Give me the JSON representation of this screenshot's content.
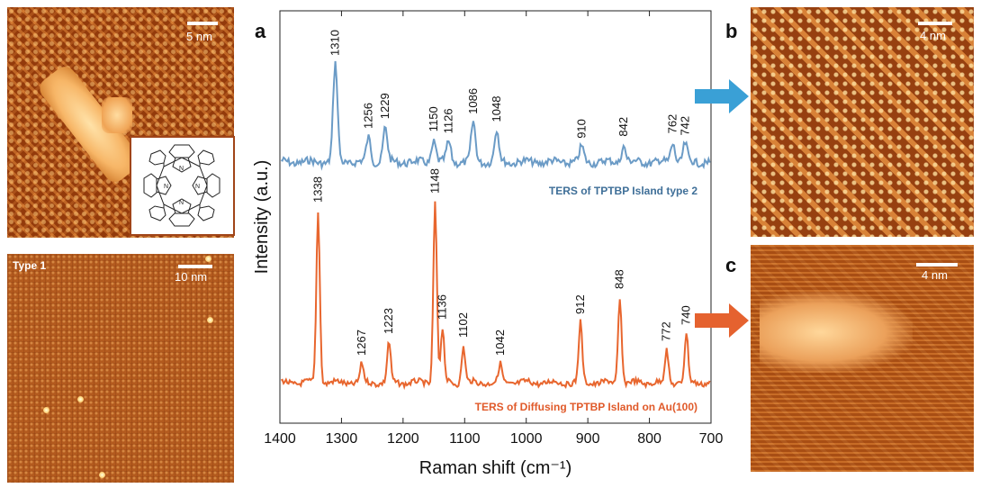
{
  "panels": {
    "a": "a",
    "b": "b",
    "c": "c"
  },
  "images": {
    "top_left": {
      "scale_label": "5 nm"
    },
    "bottom_left": {
      "scale_label": "10 nm",
      "type_label": "Type 1"
    },
    "b": {
      "scale_label": "4 nm"
    },
    "c": {
      "scale_label": "4 nm"
    }
  },
  "colors": {
    "type2": "#6b9bc6",
    "diffusing": "#e8662e",
    "arrow_blue": "#3aa0d6",
    "arrow_orange": "#e5622f",
    "label_type2": "#3f6f98",
    "label_diffusing": "#e05a2a"
  },
  "chart_data": {
    "type": "line",
    "xlabel": "Raman shift (cm⁻¹)",
    "ylabel": "Intensity (a.u.)",
    "xlim": [
      1400,
      700
    ],
    "x_reversed": true,
    "x_ticks": [
      1400,
      1300,
      1200,
      1100,
      1000,
      900,
      800,
      700
    ],
    "grid": false,
    "series": [
      {
        "name": "TERS of TPTBP Island type 2",
        "color": "#6b9bc6",
        "peaks": [
          {
            "x": 1310,
            "h": 1.0
          },
          {
            "x": 1256,
            "h": 0.25
          },
          {
            "x": 1229,
            "h": 0.35
          },
          {
            "x": 1150,
            "h": 0.22
          },
          {
            "x": 1126,
            "h": 0.2
          },
          {
            "x": 1086,
            "h": 0.4
          },
          {
            "x": 1048,
            "h": 0.32
          },
          {
            "x": 910,
            "h": 0.15
          },
          {
            "x": 842,
            "h": 0.17
          },
          {
            "x": 762,
            "h": 0.2
          },
          {
            "x": 742,
            "h": 0.18
          }
        ],
        "peak_labels": [
          "1310",
          "1256",
          "1229",
          "1150",
          "1126",
          "1086",
          "1048",
          "910",
          "842",
          "762",
          "742"
        ]
      },
      {
        "name": "TERS of Diffusing TPTBP Island on Au(100)",
        "color": "#e8662e",
        "peaks": [
          {
            "x": 1338,
            "h": 0.95
          },
          {
            "x": 1267,
            "h": 0.1
          },
          {
            "x": 1223,
            "h": 0.22
          },
          {
            "x": 1148,
            "h": 1.0
          },
          {
            "x": 1136,
            "h": 0.3
          },
          {
            "x": 1102,
            "h": 0.2
          },
          {
            "x": 1042,
            "h": 0.1
          },
          {
            "x": 912,
            "h": 0.33
          },
          {
            "x": 848,
            "h": 0.47
          },
          {
            "x": 772,
            "h": 0.18
          },
          {
            "x": 740,
            "h": 0.27
          }
        ],
        "peak_labels": [
          "1338",
          "1267",
          "1223",
          "1148",
          "1136",
          "1102",
          "1042",
          "912",
          "848",
          "772",
          "740"
        ]
      }
    ]
  }
}
